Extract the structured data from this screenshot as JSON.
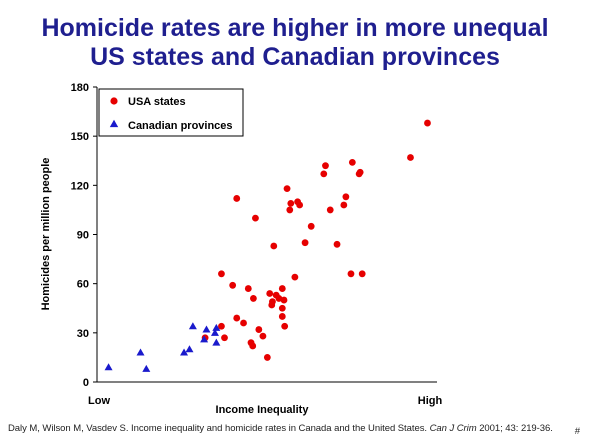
{
  "title": {
    "line1": "Homicide rates are higher in more unequal",
    "line2": "US states and Canadian provinces"
  },
  "colors": {
    "title": "#1f1f8f",
    "usa": "#e60000",
    "canada": "#1a1acc"
  },
  "chart_data": {
    "type": "scatter",
    "title": "Homicide rates are higher in more unequal US states and Canadian provinces",
    "xlabel": "Income Inequality",
    "ylabel": "Homicides per million people",
    "x_tick_labels": [
      "Low",
      "High"
    ],
    "ylim": [
      0,
      180
    ],
    "yticks": [
      0,
      30,
      60,
      90,
      120,
      150,
      180
    ],
    "xlim": [
      0,
      1
    ],
    "grid": false,
    "legend_position": "top-left",
    "series": [
      {
        "name": "USA states",
        "marker": "circle",
        "color": "#e60000",
        "points": [
          [
            0.318,
            27
          ],
          [
            0.366,
            66
          ],
          [
            0.366,
            34
          ],
          [
            0.375,
            27
          ],
          [
            0.399,
            59
          ],
          [
            0.411,
            112
          ],
          [
            0.411,
            39
          ],
          [
            0.431,
            36
          ],
          [
            0.445,
            57
          ],
          [
            0.453,
            24
          ],
          [
            0.458,
            22
          ],
          [
            0.46,
            51
          ],
          [
            0.466,
            100
          ],
          [
            0.476,
            32
          ],
          [
            0.488,
            28
          ],
          [
            0.501,
            15
          ],
          [
            0.508,
            54
          ],
          [
            0.514,
            47
          ],
          [
            0.516,
            49
          ],
          [
            0.52,
            83
          ],
          [
            0.527,
            53
          ],
          [
            0.535,
            51
          ],
          [
            0.545,
            57
          ],
          [
            0.545,
            45
          ],
          [
            0.545,
            40
          ],
          [
            0.55,
            50
          ],
          [
            0.552,
            34
          ],
          [
            0.559,
            118
          ],
          [
            0.567,
            105
          ],
          [
            0.57,
            109
          ],
          [
            0.582,
            64
          ],
          [
            0.59,
            110
          ],
          [
            0.596,
            108
          ],
          [
            0.612,
            85
          ],
          [
            0.63,
            95
          ],
          [
            0.667,
            127
          ],
          [
            0.672,
            132
          ],
          [
            0.686,
            105
          ],
          [
            0.706,
            84
          ],
          [
            0.726,
            108
          ],
          [
            0.732,
            113
          ],
          [
            0.747,
            66
          ],
          [
            0.751,
            134
          ],
          [
            0.771,
            127
          ],
          [
            0.774,
            128
          ],
          [
            0.78,
            66
          ],
          [
            0.922,
            137
          ],
          [
            0.972,
            158
          ]
        ]
      },
      {
        "name": "Canadian provinces",
        "marker": "triangle",
        "color": "#1a1acc",
        "points": [
          [
            0.034,
            9
          ],
          [
            0.128,
            18
          ],
          [
            0.145,
            8
          ],
          [
            0.256,
            18
          ],
          [
            0.272,
            20
          ],
          [
            0.282,
            34
          ],
          [
            0.315,
            26
          ],
          [
            0.322,
            32
          ],
          [
            0.347,
            30
          ],
          [
            0.351,
            33
          ],
          [
            0.351,
            24
          ]
        ]
      }
    ]
  },
  "footer": {
    "citation_prefix": "Daly M, Wilson M, Vasdev S. Income inequality and homicide rates in Canada and the United States. ",
    "journal": "Can J Crim",
    "citation_suffix": " 2001; 43: 219-36."
  },
  "slide_number": "#"
}
